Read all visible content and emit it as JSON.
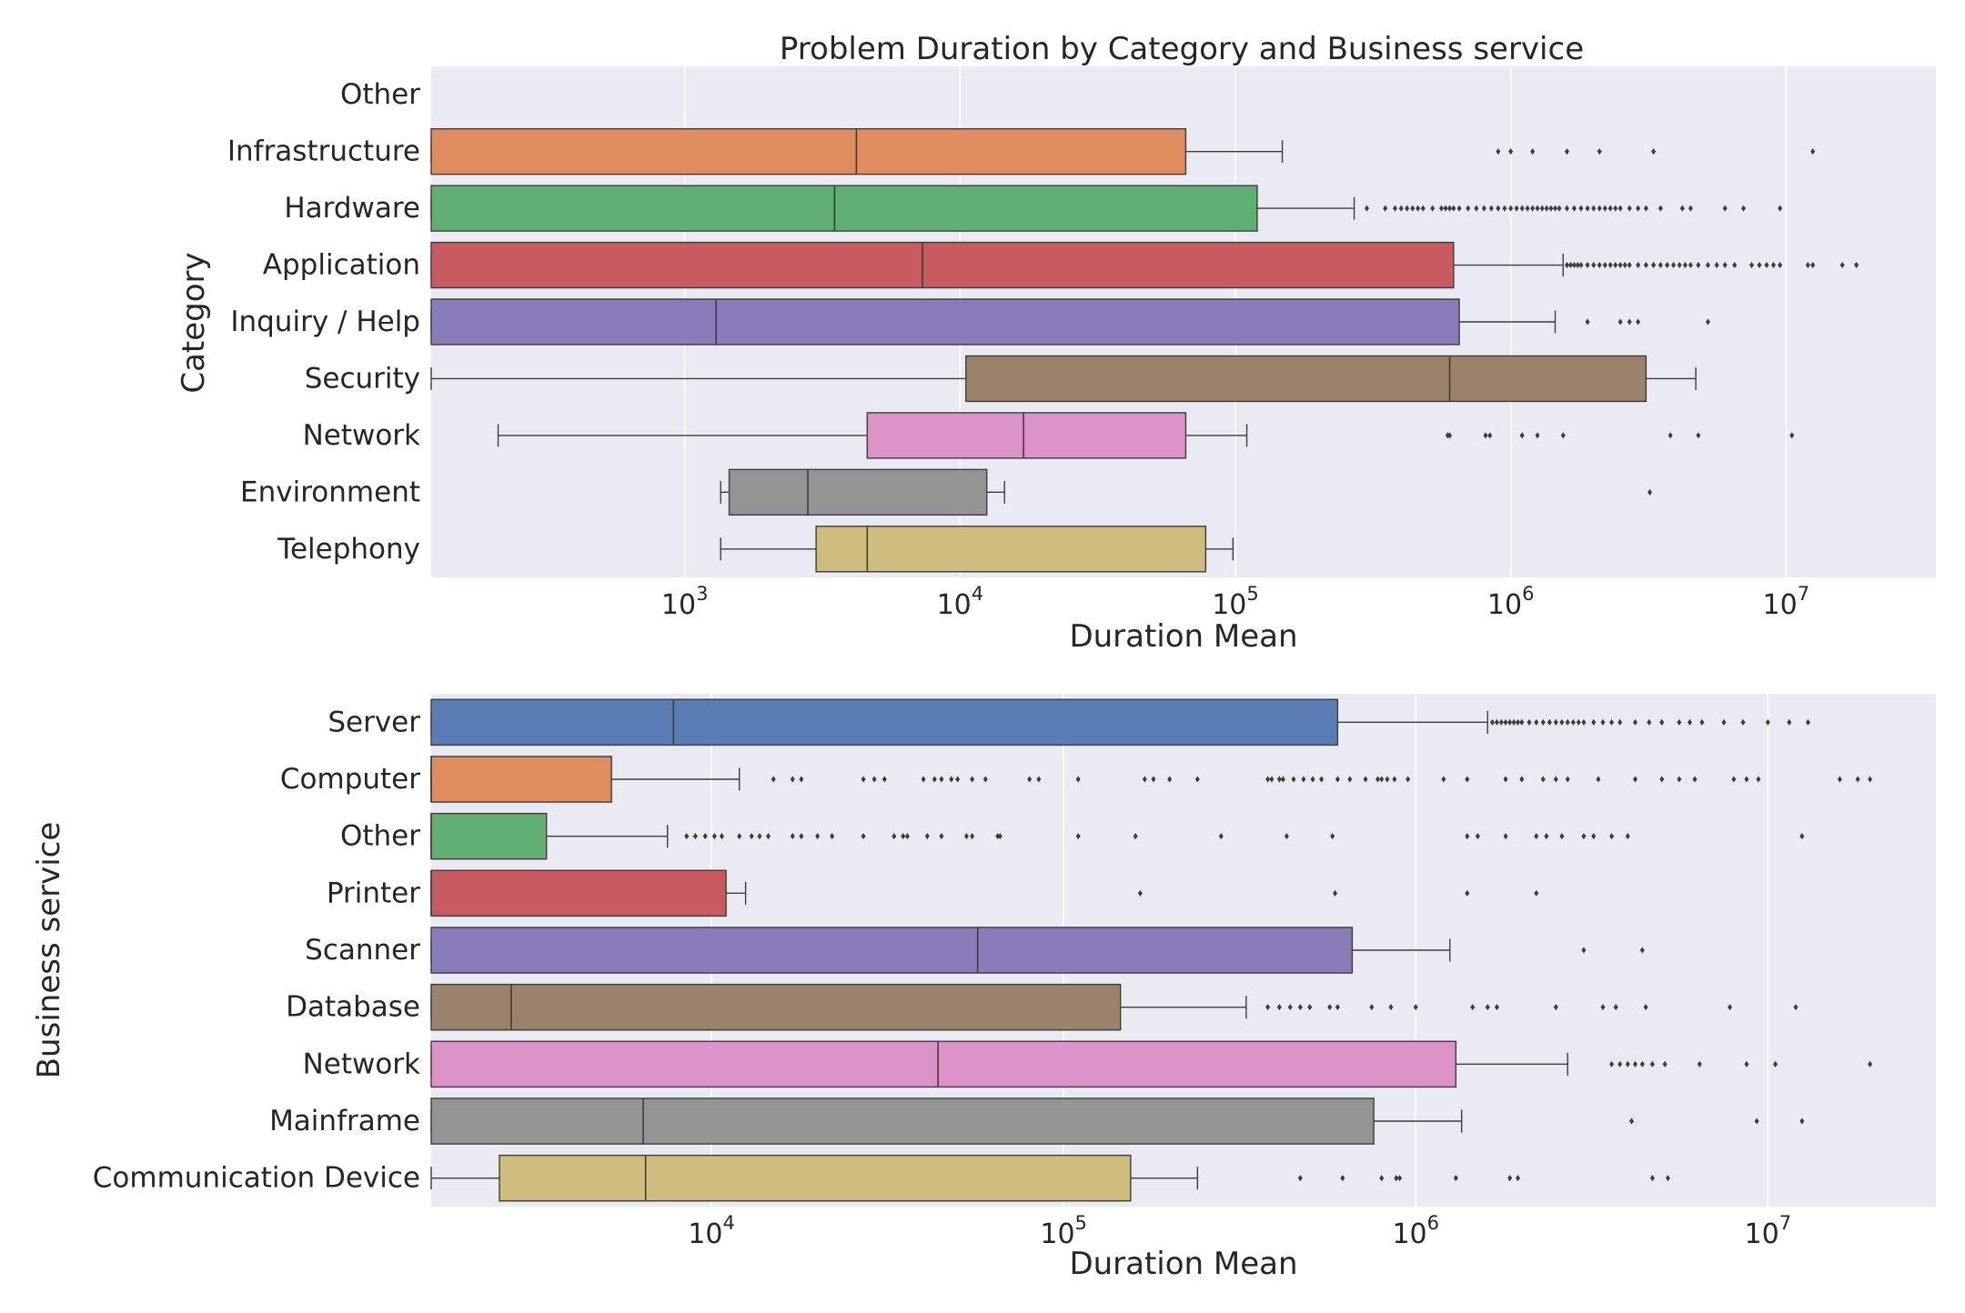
{
  "figure": {
    "title": "Problem Duration by Category and Business service"
  },
  "chart_data": [
    {
      "type": "box",
      "orientation": "horizontal",
      "title": "Problem Duration by Category and Business service",
      "xlabel": "Duration Mean",
      "ylabel": "Category",
      "xscale": "log",
      "xlim": [
        120,
        35000000
      ],
      "xticks": [
        {
          "value": 1000,
          "base": "10",
          "exp": "3"
        },
        {
          "value": 10000,
          "base": "10",
          "exp": "4"
        },
        {
          "value": 100000,
          "base": "10",
          "exp": "5"
        },
        {
          "value": 1000000,
          "base": "10",
          "exp": "6"
        },
        {
          "value": 10000000,
          "base": "10",
          "exp": "7"
        }
      ],
      "grid": true,
      "categories": [
        "Other",
        "Infrastructure",
        "Hardware",
        "Application",
        "Inquiry / Help",
        "Security",
        "Network",
        "Environment",
        "Telephony"
      ],
      "boxes": [
        {
          "label": "Other",
          "color": "#4c72b0",
          "empty": true
        },
        {
          "label": "Infrastructure",
          "color": "#dd8452",
          "whislo": 120,
          "q1": 120,
          "med": 4200,
          "q3": 66000,
          "whishi": 148000,
          "fliers": [
            900000,
            1000000,
            1200000,
            1600000,
            2100000,
            3300000,
            12500000
          ]
        },
        {
          "label": "Hardware",
          "color": "#55a868",
          "whislo": 120,
          "q1": 120,
          "med": 3500,
          "q3": 120000,
          "whishi": 270000,
          "fliers": [
            300000,
            350000,
            380000,
            400000,
            420000,
            440000,
            460000,
            480000,
            520000,
            560000,
            580000,
            600000,
            620000,
            650000,
            700000,
            750000,
            800000,
            850000,
            900000,
            950000,
            1000000,
            1050000,
            1100000,
            1150000,
            1200000,
            1250000,
            1300000,
            1350000,
            1400000,
            1450000,
            1500000,
            1600000,
            1700000,
            1800000,
            1900000,
            2000000,
            2100000,
            2200000,
            2300000,
            2400000,
            2500000,
            2700000,
            2900000,
            3100000,
            3500000,
            4200000,
            4500000,
            6000000,
            7000000,
            9500000
          ]
        },
        {
          "label": "Application",
          "color": "#c44e52",
          "whislo": 120,
          "q1": 120,
          "med": 7300,
          "q3": 620000,
          "whishi": 1550000,
          "fliers": [
            1600000,
            1650000,
            1700000,
            1750000,
            1800000,
            1900000,
            2000000,
            2100000,
            2200000,
            2300000,
            2400000,
            2500000,
            2600000,
            2700000,
            2900000,
            3100000,
            3300000,
            3500000,
            3700000,
            3900000,
            4100000,
            4300000,
            4500000,
            4800000,
            5200000,
            5600000,
            6000000,
            6500000,
            7500000,
            8000000,
            8500000,
            9000000,
            9500000,
            12000000,
            12500000,
            16000000,
            18000000
          ]
        },
        {
          "label": "Inquiry / Help",
          "color": "#8172b3",
          "whislo": 120,
          "q1": 120,
          "med": 1300,
          "q3": 650000,
          "whishi": 1450000,
          "fliers": [
            1900000,
            2500000,
            2700000,
            2900000,
            5200000
          ]
        },
        {
          "label": "Security",
          "color": "#937860",
          "whislo": 120,
          "q1": 10500,
          "med": 600000,
          "q3": 3100000,
          "whishi": 4700000,
          "fliers": []
        },
        {
          "label": "Network",
          "color": "#da8bc3",
          "whislo": 210,
          "q1": 4600,
          "med": 17000,
          "q3": 66000,
          "whishi": 110000,
          "fliers": [
            590000,
            600000,
            810000,
            840000,
            1100000,
            1250000,
            1550000,
            3800000,
            4800000,
            10500000
          ]
        },
        {
          "label": "Environment",
          "color": "#8c8c8c",
          "whislo": 1350,
          "q1": 1450,
          "med": 2800,
          "q3": 12500,
          "whishi": 14500,
          "fliers": [
            3200000
          ]
        },
        {
          "label": "Telephony",
          "color": "#ccb974",
          "whislo": 1350,
          "q1": 3000,
          "med": 4600,
          "q3": 78000,
          "whishi": 98000,
          "fliers": []
        }
      ]
    },
    {
      "type": "box",
      "orientation": "horizontal",
      "title": "",
      "xlabel": "Duration Mean",
      "ylabel": "Business service",
      "xscale": "log",
      "xlim": [
        1600,
        30000000
      ],
      "xticks": [
        {
          "value": 10000,
          "base": "10",
          "exp": "4"
        },
        {
          "value": 100000,
          "base": "10",
          "exp": "5"
        },
        {
          "value": 1000000,
          "base": "10",
          "exp": "6"
        },
        {
          "value": 10000000,
          "base": "10",
          "exp": "7"
        }
      ],
      "grid": true,
      "categories": [
        "Server",
        "Computer",
        "Other",
        "Printer",
        "Scanner",
        "Database",
        "Network",
        "Mainframe",
        "Communication Device"
      ],
      "boxes": [
        {
          "label": "Server",
          "color": "#4c72b0",
          "whislo": 1600,
          "q1": 1600,
          "med": 7800,
          "q3": 600000,
          "whishi": 1600000,
          "fliers": [
            1650000,
            1700000,
            1750000,
            1800000,
            1850000,
            1900000,
            1950000,
            2000000,
            2100000,
            2200000,
            2300000,
            2400000,
            2500000,
            2600000,
            2700000,
            2800000,
            2900000,
            3000000,
            3200000,
            3400000,
            3600000,
            3800000,
            4200000,
            4600000,
            5000000,
            5600000,
            6000000,
            6500000,
            7500000,
            8500000,
            10000000,
            11500000,
            13000000
          ]
        },
        {
          "label": "Computer",
          "color": "#dd8452",
          "whislo": 1600,
          "q1": 1600,
          "med": 1600,
          "q3": 5200,
          "whishi": 12000,
          "fliers": [
            15000,
            17000,
            18000,
            27000,
            29000,
            31000,
            40000,
            43000,
            45000,
            48000,
            50000,
            55000,
            60000,
            80000,
            85000,
            110000,
            170000,
            180000,
            200000,
            240000,
            380000,
            390000,
            410000,
            420000,
            450000,
            480000,
            510000,
            540000,
            600000,
            650000,
            720000,
            780000,
            800000,
            830000,
            870000,
            950000,
            1200000,
            1400000,
            1800000,
            2000000,
            2300000,
            2500000,
            2700000,
            3300000,
            4200000,
            5000000,
            5600000,
            6200000,
            8000000,
            8700000,
            9400000,
            16000000,
            18000000,
            19500000
          ]
        },
        {
          "label": "Other",
          "color": "#55a868",
          "whislo": 1600,
          "q1": 1600,
          "med": 1600,
          "q3": 3400,
          "whishi": 7500,
          "fliers": [
            8500,
            9000,
            9600,
            10200,
            10700,
            12000,
            13000,
            13700,
            14500,
            17000,
            18000,
            20000,
            22000,
            27000,
            33000,
            35000,
            36000,
            41000,
            45000,
            53000,
            55000,
            65000,
            66000,
            110000,
            160000,
            280000,
            430000,
            580000,
            1400000,
            1500000,
            1800000,
            2200000,
            2350000,
            2600000,
            3000000,
            3200000,
            3600000,
            4000000,
            12500000
          ]
        },
        {
          "label": "Printer",
          "color": "#c44e52",
          "whislo": 1600,
          "q1": 1600,
          "med": 1600,
          "q3": 11000,
          "whishi": 12500,
          "fliers": [
            165000,
            590000,
            1400000,
            2200000
          ]
        },
        {
          "label": "Scanner",
          "color": "#8172b3",
          "whislo": 1600,
          "q1": 1600,
          "med": 57000,
          "q3": 660000,
          "whishi": 1250000,
          "fliers": [
            3000000,
            4400000
          ]
        },
        {
          "label": "Database",
          "color": "#937860",
          "whislo": 1600,
          "q1": 1600,
          "med": 2700,
          "q3": 145000,
          "whishi": 330000,
          "fliers": [
            380000,
            410000,
            440000,
            470000,
            500000,
            570000,
            600000,
            750000,
            850000,
            1000000,
            1450000,
            1600000,
            1700000,
            2500000,
            3400000,
            3700000,
            4500000,
            7800000,
            12000000
          ]
        },
        {
          "label": "Network",
          "color": "#da8bc3",
          "whislo": 1600,
          "q1": 1600,
          "med": 44000,
          "q3": 1300000,
          "whishi": 2700000,
          "fliers": [
            3600000,
            3800000,
            4000000,
            4200000,
            4400000,
            4700000,
            5100000,
            6400000,
            8700000,
            10500000,
            19500000
          ]
        },
        {
          "label": "Mainframe",
          "color": "#8c8c8c",
          "whislo": 1600,
          "q1": 1600,
          "med": 6400,
          "q3": 760000,
          "whishi": 1350000,
          "fliers": [
            4100000,
            9300000,
            12500000
          ]
        },
        {
          "label": "Communication Device",
          "color": "#ccb974",
          "whislo": 1600,
          "q1": 2500,
          "med": 6500,
          "q3": 155000,
          "whishi": 240000,
          "fliers": [
            470000,
            620000,
            800000,
            880000,
            900000,
            1300000,
            1850000,
            1950000,
            4700000,
            5200000
          ]
        }
      ]
    }
  ]
}
